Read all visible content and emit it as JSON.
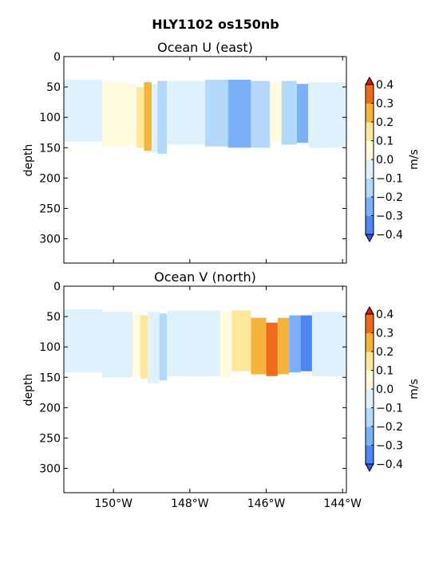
{
  "figure": {
    "suptitle": "HLY1102 os150nb"
  },
  "colorbar": {
    "levels": [
      -0.4,
      -0.3,
      -0.2,
      -0.1,
      0.0,
      0.1,
      0.2,
      0.3,
      0.4
    ],
    "tick_labels": [
      "−0.4",
      "−0.3",
      "−0.2",
      "−0.1",
      "0.0",
      "0.1",
      "0.2",
      "0.3",
      "0.4"
    ],
    "unit_label": "m/s",
    "colors": [
      "#3b4cf0",
      "#4f85f0",
      "#7cb0f7",
      "#b4d8f8",
      "#dff1fc",
      "#fffbdf",
      "#fde79a",
      "#f6b43c",
      "#ef6b1c",
      "#d21a10"
    ],
    "extend": "both"
  },
  "chart_data": [
    {
      "type": "heatmap",
      "title": "Ocean U (east)",
      "xlabel": "",
      "ylabel": "depth",
      "xlim": [
        -151.3,
        -143.9
      ],
      "ylim": [
        340,
        0
      ],
      "yticks": [
        0,
        50,
        100,
        150,
        200,
        250,
        300
      ],
      "ytick_labels": [
        "0",
        "50",
        "100",
        "150",
        "200",
        "250",
        "300"
      ],
      "xticks": [
        -150,
        -148,
        -146,
        -144
      ],
      "xtick_labels": [],
      "units": "m/s",
      "segments": [
        {
          "x0": -151.3,
          "x1": -150.3,
          "top": 38,
          "bottom": 140,
          "value": -0.05
        },
        {
          "x0": -150.3,
          "x1": -149.65,
          "top": 42,
          "bottom": 148,
          "value": 0.05
        },
        {
          "x0": -149.65,
          "x1": -149.4,
          "top": 45,
          "bottom": 146,
          "value": 0.05
        },
        {
          "x0": -149.4,
          "x1": -149.2,
          "top": 50,
          "bottom": 150,
          "value": 0.15
        },
        {
          "x0": -149.2,
          "x1": -149.0,
          "top": 42,
          "bottom": 155,
          "value": 0.25
        },
        {
          "x0": -149.0,
          "x1": -148.85,
          "top": 45,
          "bottom": 158,
          "value": -0.05
        },
        {
          "x0": -148.85,
          "x1": -148.6,
          "top": 40,
          "bottom": 160,
          "value": -0.15
        },
        {
          "x0": -148.6,
          "x1": -147.6,
          "top": 40,
          "bottom": 145,
          "value": -0.05
        },
        {
          "x0": -147.6,
          "x1": -147.0,
          "top": 38,
          "bottom": 148,
          "value": -0.15
        },
        {
          "x0": -147.0,
          "x1": -146.4,
          "top": 38,
          "bottom": 150,
          "value": -0.25
        },
        {
          "x0": -146.4,
          "x1": -145.9,
          "top": 40,
          "bottom": 150,
          "value": -0.15
        },
        {
          "x0": -145.9,
          "x1": -145.6,
          "top": 42,
          "bottom": 140,
          "value": 0.05
        },
        {
          "x0": -145.6,
          "x1": -145.2,
          "top": 40,
          "bottom": 145,
          "value": -0.15
        },
        {
          "x0": -145.2,
          "x1": -144.9,
          "top": 45,
          "bottom": 142,
          "value": -0.25
        },
        {
          "x0": -144.9,
          "x1": -143.9,
          "top": 42,
          "bottom": 150,
          "value": -0.05
        }
      ]
    },
    {
      "type": "heatmap",
      "title": "Ocean V (north)",
      "xlabel": "",
      "ylabel": "depth",
      "xlim": [
        -151.3,
        -143.9
      ],
      "ylim": [
        340,
        0
      ],
      "yticks": [
        0,
        50,
        100,
        150,
        200,
        250,
        300
      ],
      "ytick_labels": [
        "0",
        "50",
        "100",
        "150",
        "200",
        "250",
        "300"
      ],
      "xticks": [
        -150,
        -148,
        -146,
        -144
      ],
      "xtick_labels": [
        "150°W",
        "148°W",
        "146°W",
        "144°W"
      ],
      "units": "m/s",
      "segments": [
        {
          "x0": -151.3,
          "x1": -150.3,
          "top": 38,
          "bottom": 142,
          "value": -0.05
        },
        {
          "x0": -150.3,
          "x1": -149.5,
          "top": 42,
          "bottom": 150,
          "value": -0.05
        },
        {
          "x0": -149.5,
          "x1": -149.3,
          "top": 45,
          "bottom": 148,
          "value": 0.05
        },
        {
          "x0": -149.3,
          "x1": -149.1,
          "top": 48,
          "bottom": 152,
          "value": 0.15
        },
        {
          "x0": -149.1,
          "x1": -148.8,
          "top": 42,
          "bottom": 160,
          "value": -0.05
        },
        {
          "x0": -148.8,
          "x1": -148.6,
          "top": 45,
          "bottom": 155,
          "value": -0.15
        },
        {
          "x0": -148.6,
          "x1": -147.2,
          "top": 40,
          "bottom": 148,
          "value": -0.05
        },
        {
          "x0": -147.2,
          "x1": -146.9,
          "top": 40,
          "bottom": 150,
          "value": 0.05
        },
        {
          "x0": -146.9,
          "x1": -146.4,
          "top": 40,
          "bottom": 140,
          "value": 0.15
        },
        {
          "x0": -146.4,
          "x1": -146.0,
          "top": 52,
          "bottom": 145,
          "value": 0.25
        },
        {
          "x0": -146.0,
          "x1": -145.7,
          "top": 60,
          "bottom": 148,
          "value": 0.35
        },
        {
          "x0": -145.7,
          "x1": -145.4,
          "top": 52,
          "bottom": 145,
          "value": 0.25
        },
        {
          "x0": -145.4,
          "x1": -145.1,
          "top": 48,
          "bottom": 142,
          "value": -0.25
        },
        {
          "x0": -145.1,
          "x1": -144.8,
          "top": 48,
          "bottom": 140,
          "value": -0.35
        },
        {
          "x0": -144.8,
          "x1": -143.9,
          "top": 42,
          "bottom": 148,
          "value": -0.05
        }
      ]
    }
  ]
}
